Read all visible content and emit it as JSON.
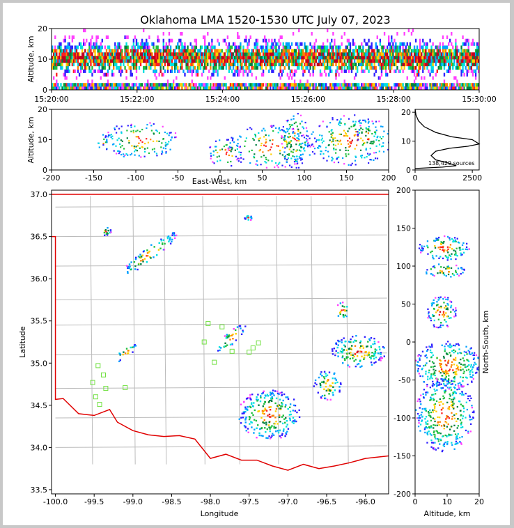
{
  "chart_data": [
    {
      "panel": "time-height",
      "type": "heatmap",
      "title": "Oklahoma LMA 1520-1530 UTC July 07, 2023",
      "ylabel": "Altitude, km",
      "ylim": [
        0,
        20
      ],
      "yticks": [
        "0",
        "10",
        "20"
      ],
      "xticks": [
        "15:20:00",
        "15:22:00",
        "15:24:00",
        "15:26:00",
        "15:28:00",
        "15:30:00"
      ]
    },
    {
      "panel": "east-west-altitude",
      "type": "heatmap",
      "xlabel": "East-West, km",
      "ylabel": "Altitude, km",
      "xlim": [
        -200,
        200
      ],
      "ylim": [
        0,
        20
      ],
      "xticks": [
        "-200",
        "-150",
        "-100",
        "-50",
        "0",
        "50",
        "100",
        "150",
        "200"
      ],
      "yticks": [
        "0",
        "10",
        "20"
      ],
      "blobs": [
        {
          "x": -95,
          "alt": 10,
          "rx": 40,
          "ry": 5
        },
        {
          "x": -140,
          "alt": 9,
          "rx": 6,
          "ry": 3
        },
        {
          "x": 5,
          "alt": 6,
          "rx": 18,
          "ry": 4
        },
        {
          "x": 60,
          "alt": 8,
          "rx": 45,
          "ry": 6
        },
        {
          "x": 88,
          "alt": 10,
          "rx": 14,
          "ry": 8
        },
        {
          "x": 155,
          "alt": 10,
          "rx": 45,
          "ry": 7
        },
        {
          "x": 175,
          "alt": 11,
          "rx": 12,
          "ry": 5
        }
      ]
    },
    {
      "panel": "altitude-histogram",
      "type": "line",
      "annotation": "138,429 sources",
      "xticks": [
        "0",
        "2500"
      ],
      "yticks": [
        "0",
        "10",
        "20"
      ],
      "xlim": [
        0,
        2800
      ],
      "ylim": [
        0,
        21
      ],
      "points": [
        [
          0,
          0.5
        ],
        [
          1200,
          1
        ],
        [
          1800,
          1.5
        ],
        [
          1400,
          2.5
        ],
        [
          900,
          3.5
        ],
        [
          700,
          5
        ],
        [
          900,
          6.5
        ],
        [
          1500,
          7.5
        ],
        [
          2300,
          8.2
        ],
        [
          2800,
          9
        ],
        [
          2500,
          10.5
        ],
        [
          1600,
          11.5
        ],
        [
          900,
          13
        ],
        [
          400,
          15
        ],
        [
          150,
          17
        ],
        [
          40,
          19
        ],
        [
          0,
          21
        ]
      ]
    },
    {
      "panel": "plan-view",
      "type": "scatter",
      "xlabel": "Longitude",
      "ylabel": "Latitude",
      "xlim": [
        -100.05,
        -95.7
      ],
      "ylim": [
        33.45,
        37.05
      ],
      "xticks": [
        "-100.0",
        "-99.5",
        "-99.0",
        "-98.5",
        "-98.0",
        "-97.5",
        "-97.0",
        "-96.5",
        "-96.0"
      ],
      "yticks": [
        "33.5",
        "34.0",
        "34.5",
        "35.0",
        "35.5",
        "36.0",
        "36.5",
        "37.0"
      ],
      "stations": [
        [
          -99.45,
          34.97
        ],
        [
          -99.38,
          34.86
        ],
        [
          -99.52,
          34.77
        ],
        [
          -99.35,
          34.7
        ],
        [
          -99.1,
          34.71
        ],
        [
          -99.48,
          34.6
        ],
        [
          -99.43,
          34.51
        ],
        [
          -98.03,
          35.47
        ],
        [
          -98.08,
          35.25
        ],
        [
          -97.85,
          35.43
        ],
        [
          -97.95,
          35.01
        ],
        [
          -97.72,
          35.14
        ],
        [
          -97.5,
          35.13
        ],
        [
          -97.45,
          35.18
        ],
        [
          -97.38,
          35.24
        ]
      ],
      "blobs": [
        {
          "lon": -98.8,
          "lat": 36.3,
          "rx": 0.45,
          "ry": 0.08,
          "rot": 38
        },
        {
          "lon": -99.35,
          "lat": 36.57,
          "rx": 0.06,
          "ry": 0.05,
          "rot": 0
        },
        {
          "lon": -99.1,
          "lat": 35.13,
          "rx": 0.18,
          "ry": 0.06,
          "rot": 35
        },
        {
          "lon": -97.75,
          "lat": 35.3,
          "rx": 0.25,
          "ry": 0.07,
          "rot": 42
        },
        {
          "lon": -97.25,
          "lat": 34.4,
          "rx": 0.4,
          "ry": 0.3,
          "rot": 0
        },
        {
          "lon": -96.5,
          "lat": 34.75,
          "rx": 0.18,
          "ry": 0.18,
          "rot": 0
        },
        {
          "lon": -96.1,
          "lat": 35.15,
          "rx": 0.35,
          "ry": 0.2,
          "rot": 0
        },
        {
          "lon": -96.3,
          "lat": 35.63,
          "rx": 0.1,
          "ry": 0.1,
          "rot": 0
        },
        {
          "lon": -97.52,
          "lat": 36.73,
          "rx": 0.05,
          "ry": 0.03,
          "rot": 0
        }
      ],
      "boundary_color": "#e00000",
      "county_color": "#bbbbbb"
    },
    {
      "panel": "north-south-altitude",
      "type": "heatmap",
      "xlabel": "Altitude, km",
      "ylabel": "North-South, km",
      "xlim": [
        0,
        20
      ],
      "ylim": [
        -200,
        200
      ],
      "xticks": [
        "0",
        "10",
        "20"
      ],
      "yticks": [
        "-200",
        "-150",
        "-100",
        "-50",
        "0",
        "50",
        "100",
        "150",
        "200"
      ],
      "blobs": [
        {
          "alt": 9,
          "ns": 125,
          "rx": 7,
          "ry": 15
        },
        {
          "alt": 9,
          "ns": 95,
          "rx": 6,
          "ry": 8
        },
        {
          "alt": 8,
          "ns": 40,
          "rx": 4,
          "ry": 20
        },
        {
          "alt": 10,
          "ns": -30,
          "rx": 9,
          "ry": 30
        },
        {
          "alt": 9,
          "ns": -95,
          "rx": 8,
          "ry": 45
        }
      ]
    }
  ]
}
